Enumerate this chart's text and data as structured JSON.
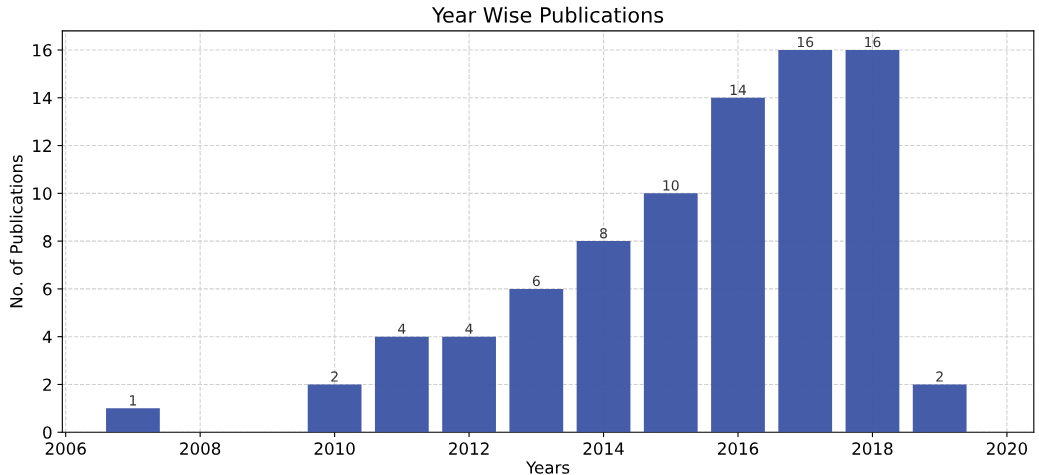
{
  "chart_data": {
    "type": "bar",
    "title": "Year Wise Publications",
    "xlabel": "Years",
    "ylabel": "No. of Publications",
    "x": [
      2007,
      2010,
      2011,
      2012,
      2013,
      2014,
      2015,
      2016,
      2017,
      2018,
      2019
    ],
    "values": [
      1,
      2,
      4,
      4,
      6,
      8,
      10,
      14,
      16,
      16,
      2
    ],
    "color": "#3b53a4",
    "xlim": [
      2005.95,
      2020.4
    ],
    "xticks": [
      2006,
      2008,
      2010,
      2012,
      2014,
      2016,
      2018,
      2020
    ],
    "ylim": [
      0,
      16.8
    ],
    "yticks": [
      0,
      2,
      4,
      6,
      8,
      10,
      12,
      14,
      16
    ],
    "grid": true,
    "line_style": "dashed",
    "data_labels": true
  }
}
